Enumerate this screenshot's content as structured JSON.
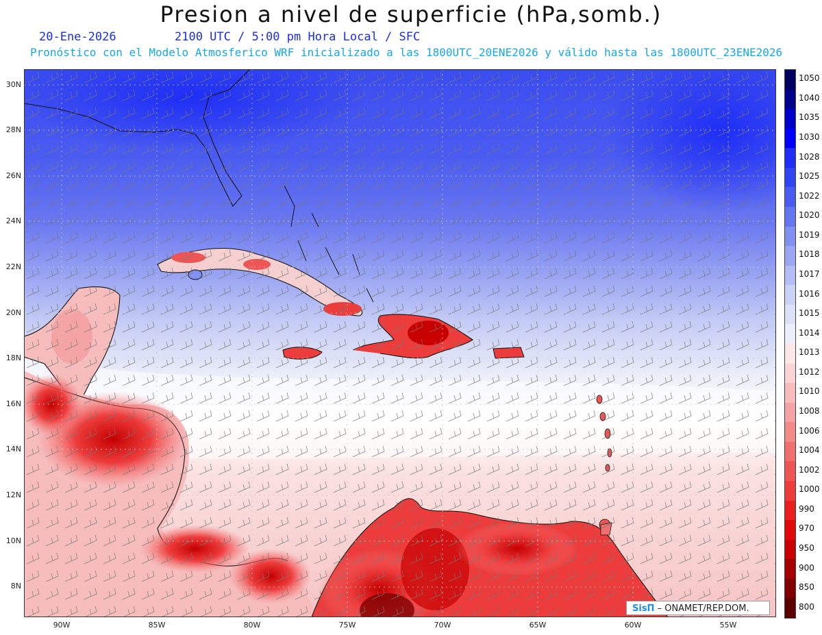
{
  "title": "Presion a nivel de superficie (hPa,somb.)",
  "subtitle": {
    "date": "20-Ene-2026",
    "time": "2100 UTC / 5:00 pm Hora Local / SFC",
    "forecast": "Pronóstico con el Modelo Atmosferico WRF inicializado a las 1800UTC_20ENE2026 y válido hasta las  1800UTC_23ENE2026"
  },
  "map": {
    "lat_labels": [
      "30N",
      "28N",
      "26N",
      "24N",
      "22N",
      "20N",
      "18N",
      "16N",
      "14N",
      "12N",
      "10N",
      "8N"
    ],
    "lon_labels": [
      "90W",
      "85W",
      "80W",
      "75W",
      "70W",
      "65W",
      "60W",
      "55W"
    ],
    "wind_barbs": "shown",
    "gridlines": "dotted"
  },
  "colorbar": {
    "levels": [
      "1050",
      "1040",
      "1035",
      "1030",
      "1028",
      "1025",
      "1022",
      "1020",
      "1019",
      "1018",
      "1017",
      "1016",
      "1015",
      "1014",
      "1013",
      "1012",
      "1010",
      "1008",
      "1006",
      "1004",
      "1002",
      "1000",
      "990",
      "970",
      "950",
      "900",
      "850",
      "800"
    ],
    "colors": [
      "#000060",
      "#00008b",
      "#0000c8",
      "#0000ff",
      "#1e2ef5",
      "#2f45f2",
      "#4a5cf0",
      "#6575f0",
      "#8290f0",
      "#9aa6f2",
      "#b3bcf4",
      "#ccd2f6",
      "#dde1f8",
      "#eceef9",
      "#fce8e8",
      "#fad4d4",
      "#f7bcbc",
      "#f4a4a4",
      "#f28a8a",
      "#f07070",
      "#ee5656",
      "#ec3c3c",
      "#e82020",
      "#e00a0a",
      "#c80000",
      "#a40000",
      "#800000",
      "#5a0000"
    ]
  },
  "credit": {
    "logo": "SisΠ",
    "text": "– ONAMET/REP.DOM."
  }
}
